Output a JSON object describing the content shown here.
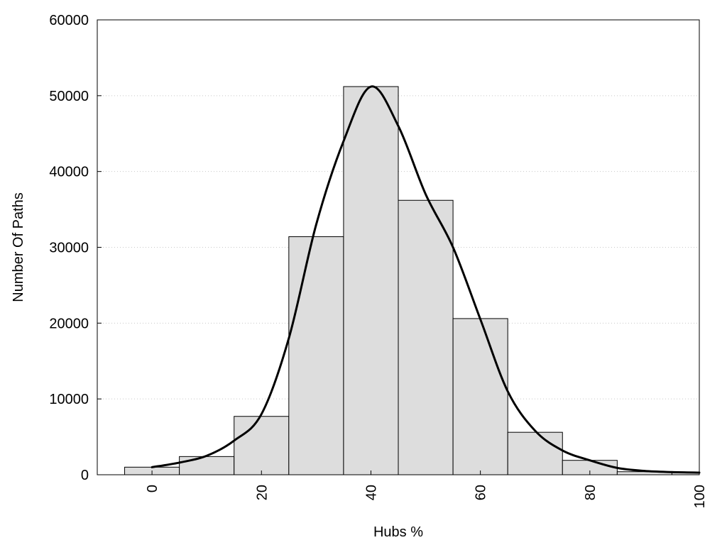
{
  "chart_data": {
    "type": "bar",
    "title": "",
    "xlabel": "Hubs %",
    "ylabel": "Number Of Paths",
    "xlim": [
      -10,
      100
    ],
    "ylim": [
      0,
      60000
    ],
    "x_ticks": [
      0,
      20,
      40,
      60,
      80,
      100
    ],
    "y_ticks": [
      0,
      10000,
      20000,
      30000,
      40000,
      50000,
      60000
    ],
    "grid": "horizontal-dotted",
    "bar_color": "#dddddd",
    "bar_edge_color": "#000000",
    "bins": [
      {
        "x0": -5,
        "x1": 5,
        "value": 1000
      },
      {
        "x0": 5,
        "x1": 15,
        "value": 2400
      },
      {
        "x0": 15,
        "x1": 25,
        "value": 7700
      },
      {
        "x0": 25,
        "x1": 35,
        "value": 31400
      },
      {
        "x0": 35,
        "x1": 45,
        "value": 51200
      },
      {
        "x0": 45,
        "x1": 55,
        "value": 36200
      },
      {
        "x0": 55,
        "x1": 65,
        "value": 20600
      },
      {
        "x0": 65,
        "x1": 75,
        "value": 5600
      },
      {
        "x0": 75,
        "x1": 85,
        "value": 1900
      },
      {
        "x0": 85,
        "x1": 95,
        "value": 400
      },
      {
        "x0": 95,
        "x1": 100,
        "value": 300
      }
    ],
    "curve": {
      "color": "#000000",
      "points": [
        [
          0,
          1000
        ],
        [
          5,
          1600
        ],
        [
          10,
          2500
        ],
        [
          15,
          4500
        ],
        [
          20,
          8000
        ],
        [
          25,
          18000
        ],
        [
          30,
          33000
        ],
        [
          35,
          44000
        ],
        [
          40,
          51200
        ],
        [
          45,
          46000
        ],
        [
          50,
          37000
        ],
        [
          55,
          30000
        ],
        [
          60,
          20500
        ],
        [
          65,
          11000
        ],
        [
          70,
          5800
        ],
        [
          75,
          3200
        ],
        [
          80,
          1900
        ],
        [
          85,
          900
        ],
        [
          90,
          500
        ],
        [
          95,
          350
        ],
        [
          100,
          280
        ]
      ]
    }
  }
}
